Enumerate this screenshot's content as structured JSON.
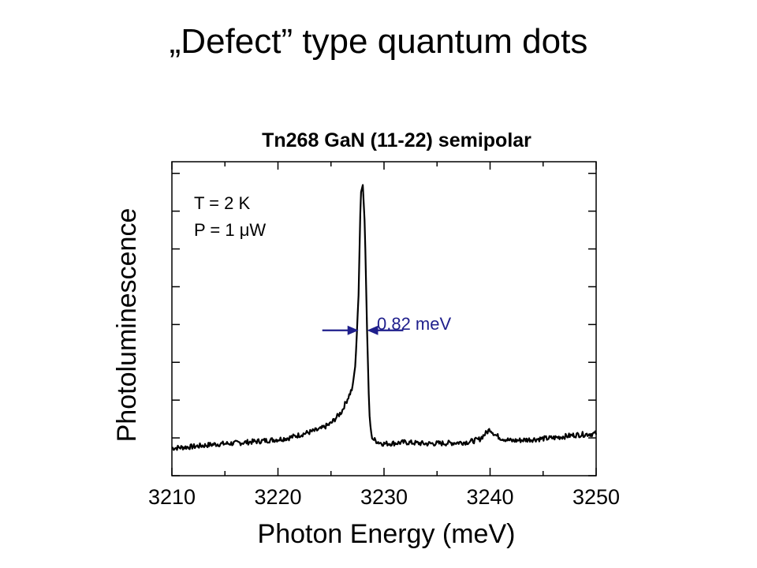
{
  "slide": {
    "title": "„Defect” type quantum dots"
  },
  "chart_data": {
    "type": "line",
    "title": "Tn268 GaN (11-22) semipolar",
    "xlabel": "Photon Energy (meV)",
    "ylabel": "Photoluminescence",
    "xlim": [
      3210,
      3250
    ],
    "ylim": [
      0,
      1.08
    ],
    "x_ticks": [
      3210,
      3220,
      3230,
      3240,
      3250
    ],
    "x_minor_step": 5,
    "y_tick_values": [
      0,
      0.13,
      0.26,
      0.39,
      0.52,
      0.65,
      0.78,
      0.91,
      1.04
    ],
    "y_tick_labels": false,
    "grid": false,
    "series": [
      {
        "color": "#000000",
        "x": [
          3210,
          3212,
          3214,
          3216,
          3218,
          3220,
          3221,
          3222,
          3223,
          3224,
          3224.5,
          3225,
          3225.5,
          3226,
          3226.5,
          3227,
          3227.3,
          3227.6,
          3227.8,
          3228.0,
          3228.2,
          3228.4,
          3228.6,
          3228.8,
          3229,
          3229.5,
          3230,
          3231,
          3232,
          3234,
          3236,
          3238,
          3239,
          3240,
          3240.5,
          3241,
          3242,
          3244,
          3246,
          3248,
          3250
        ],
        "y": [
          0.095,
          0.1,
          0.108,
          0.112,
          0.118,
          0.125,
          0.13,
          0.14,
          0.15,
          0.16,
          0.17,
          0.18,
          0.2,
          0.22,
          0.26,
          0.3,
          0.38,
          0.62,
          0.97,
          1.0,
          0.85,
          0.5,
          0.22,
          0.14,
          0.125,
          0.115,
          0.11,
          0.112,
          0.115,
          0.11,
          0.112,
          0.116,
          0.125,
          0.16,
          0.14,
          0.13,
          0.12,
          0.125,
          0.13,
          0.14,
          0.145
        ]
      }
    ],
    "annotations": {
      "temperature": "T = 2 K",
      "power": "P = 1 μW",
      "fwhm_label": "0.82 meV",
      "fwhm_color": "#1f1f8c",
      "fwhm_x": [
        3227.6,
        3228.4
      ],
      "fwhm_y": 0.5
    }
  }
}
